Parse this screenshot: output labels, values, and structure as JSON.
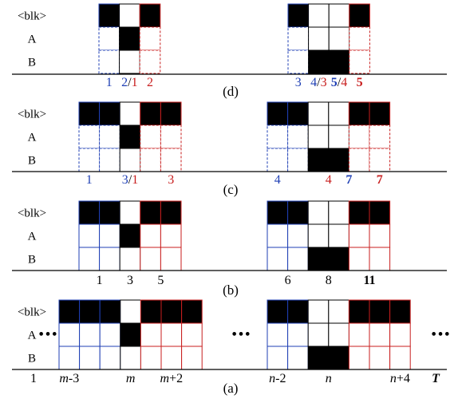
{
  "row_labels": [
    "<blk>",
    "A",
    "B"
  ],
  "ellipsis": "•••",
  "colors": {
    "blue": "#1f3fb4",
    "red": "#c81e1e",
    "black": "#000000"
  },
  "panels": [
    {
      "id": "d",
      "caption": "(d)",
      "dashed": true,
      "ellipsis": false,
      "groups": [
        {
          "cells": [
            {
              "color": "blue",
              "fill": [
                "blk"
              ]
            },
            {
              "color": "black",
              "fill": [
                "A"
              ]
            },
            {
              "color": "red",
              "fill": [
                "blk"
              ]
            }
          ],
          "labels": [
            {
              "parts": [
                {
                  "text": "1",
                  "color": "blue"
                }
              ],
              "cell": 0
            },
            {
              "parts": [
                {
                  "text": "2",
                  "color": "blue"
                },
                {
                  "text": "/",
                  "color": "black"
                },
                {
                  "text": "1",
                  "color": "red"
                }
              ],
              "cell": 1
            },
            {
              "parts": [
                {
                  "text": "2",
                  "color": "red"
                }
              ],
              "cell": 2
            }
          ]
        },
        {
          "cells": [
            {
              "color": "blue",
              "fill": [
                "blk"
              ]
            },
            {
              "color": "black",
              "fill": [
                "B"
              ]
            },
            {
              "color": "black",
              "fill": [
                "B"
              ]
            },
            {
              "color": "red",
              "fill": [
                "blk"
              ]
            }
          ],
          "labels": [
            {
              "parts": [
                {
                  "text": "3",
                  "color": "blue"
                }
              ],
              "cell": 0
            },
            {
              "parts": [
                {
                  "text": "4",
                  "color": "blue"
                },
                {
                  "text": "/",
                  "color": "black"
                },
                {
                  "text": "3",
                  "color": "red"
                }
              ],
              "cell": 1
            },
            {
              "parts": [
                {
                  "text": "5",
                  "color": "blue",
                  "bold": true
                },
                {
                  "text": "/",
                  "color": "black"
                },
                {
                  "text": "4",
                  "color": "red"
                }
              ],
              "cell": 2
            },
            {
              "parts": [
                {
                  "text": "5",
                  "color": "red",
                  "bold": true
                }
              ],
              "cell": 3
            }
          ]
        }
      ]
    },
    {
      "id": "c",
      "caption": "(c)",
      "dashed": true,
      "ellipsis": false,
      "groups": [
        {
          "cells": [
            {
              "color": "blue",
              "fill": [
                "blk"
              ]
            },
            {
              "color": "blue",
              "fill": [
                "blk"
              ]
            },
            {
              "color": "black",
              "fill": [
                "A"
              ]
            },
            {
              "color": "red",
              "fill": [
                "blk"
              ]
            },
            {
              "color": "red",
              "fill": [
                "blk"
              ]
            }
          ],
          "labels": [
            {
              "parts": [
                {
                  "text": "1",
                  "color": "blue"
                }
              ],
              "cell": 0
            },
            {
              "parts": [
                {
                  "text": "3",
                  "color": "blue"
                },
                {
                  "text": "/",
                  "color": "black"
                },
                {
                  "text": "1",
                  "color": "red"
                }
              ],
              "cell": 2
            },
            {
              "parts": [
                {
                  "text": "3",
                  "color": "red"
                }
              ],
              "cell": 4
            }
          ]
        },
        {
          "cells": [
            {
              "color": "blue",
              "fill": [
                "blk"
              ]
            },
            {
              "color": "blue",
              "fill": [
                "blk"
              ]
            },
            {
              "color": "black",
              "fill": [
                "B"
              ]
            },
            {
              "color": "black",
              "fill": [
                "B"
              ]
            },
            {
              "color": "red",
              "fill": [
                "blk"
              ]
            },
            {
              "color": "red",
              "fill": [
                "blk"
              ]
            }
          ],
          "labels": [
            {
              "parts": [
                {
                  "text": "4",
                  "color": "blue"
                }
              ],
              "cell": 0
            },
            {
              "parts": [
                {
                  "text": "4",
                  "color": "red"
                }
              ],
              "cell": 2.5
            },
            {
              "parts": [
                {
                  "text": "7",
                  "color": "blue",
                  "bold": true
                }
              ],
              "cell": 3.5
            },
            {
              "parts": [
                {
                  "text": "7",
                  "color": "red",
                  "bold": true
                }
              ],
              "cell": 5
            }
          ]
        }
      ]
    },
    {
      "id": "b",
      "caption": "(b)",
      "dashed": false,
      "ellipsis": false,
      "groups": [
        {
          "cells": [
            {
              "color": "blue",
              "fill": [
                "blk"
              ]
            },
            {
              "color": "blue",
              "fill": [
                "blk"
              ]
            },
            {
              "color": "black",
              "fill": [
                "A"
              ]
            },
            {
              "color": "red",
              "fill": [
                "blk"
              ]
            },
            {
              "color": "red",
              "fill": [
                "blk"
              ]
            }
          ],
          "labels": [
            {
              "parts": [
                {
                  "text": "1",
                  "color": "black"
                }
              ],
              "cell": 0.5
            },
            {
              "parts": [
                {
                  "text": "3",
                  "color": "black"
                }
              ],
              "cell": 2
            },
            {
              "parts": [
                {
                  "text": "5",
                  "color": "black"
                }
              ],
              "cell": 3.5
            }
          ]
        },
        {
          "cells": [
            {
              "color": "blue",
              "fill": [
                "blk"
              ]
            },
            {
              "color": "blue",
              "fill": [
                "blk"
              ]
            },
            {
              "color": "black",
              "fill": [
                "B"
              ]
            },
            {
              "color": "black",
              "fill": [
                "B"
              ]
            },
            {
              "color": "red",
              "fill": [
                "blk"
              ]
            },
            {
              "color": "red",
              "fill": [
                "blk"
              ]
            }
          ],
          "labels": [
            {
              "parts": [
                {
                  "text": "6",
                  "color": "black"
                }
              ],
              "cell": 0.5
            },
            {
              "parts": [
                {
                  "text": "8",
                  "color": "black"
                }
              ],
              "cell": 2.5
            },
            {
              "parts": [
                {
                  "text": "11",
                  "color": "black",
                  "bold": true
                }
              ],
              "cell": 4.5
            }
          ]
        }
      ]
    },
    {
      "id": "a",
      "caption": "(a)",
      "dashed": false,
      "ellipsis": true,
      "groups": [
        {
          "cells": [
            {
              "color": "blue",
              "fill": [
                "blk"
              ]
            },
            {
              "color": "blue",
              "fill": [
                "blk"
              ]
            },
            {
              "color": "blue",
              "fill": [
                "blk"
              ]
            },
            {
              "color": "black",
              "fill": [
                "A"
              ]
            },
            {
              "color": "red",
              "fill": [
                "blk"
              ]
            },
            {
              "color": "red",
              "fill": [
                "blk"
              ]
            },
            {
              "color": "red",
              "fill": [
                "blk"
              ]
            }
          ],
          "labels": [
            {
              "parts": [
                {
                  "text": "m",
                  "color": "black",
                  "italic": true
                },
                {
                  "text": "-3",
                  "color": "black"
                }
              ],
              "cell": 0
            },
            {
              "parts": [
                {
                  "text": "m",
                  "color": "black",
                  "italic": true
                }
              ],
              "cell": 3
            },
            {
              "parts": [
                {
                  "text": "m",
                  "color": "black",
                  "italic": true
                },
                {
                  "text": "+2",
                  "color": "black"
                }
              ],
              "cell": 5
            }
          ]
        },
        {
          "cells": [
            {
              "color": "blue",
              "fill": [
                "blk"
              ]
            },
            {
              "color": "blue",
              "fill": [
                "blk"
              ]
            },
            {
              "color": "black",
              "fill": [
                "B"
              ]
            },
            {
              "color": "black",
              "fill": [
                "B"
              ]
            },
            {
              "color": "red",
              "fill": [
                "blk"
              ]
            },
            {
              "color": "red",
              "fill": [
                "blk"
              ]
            },
            {
              "color": "red",
              "fill": [
                "blk"
              ]
            }
          ],
          "labels": [
            {
              "parts": [
                {
                  "text": "n",
                  "color": "black",
                  "italic": true
                },
                {
                  "text": "-2",
                  "color": "black"
                }
              ],
              "cell": 0
            },
            {
              "parts": [
                {
                  "text": "n",
                  "color": "black",
                  "italic": true
                }
              ],
              "cell": 2.5
            },
            {
              "parts": [
                {
                  "text": "n",
                  "color": "black",
                  "italic": true
                },
                {
                  "text": "+4",
                  "color": "black"
                }
              ],
              "cell": 6
            }
          ]
        }
      ],
      "extra_labels": [
        {
          "parts": [
            {
              "text": "1",
              "color": "black"
            }
          ],
          "where": "start"
        },
        {
          "parts": [
            {
              "text": "T",
              "color": "black",
              "italic": true,
              "bold": true
            }
          ],
          "where": "end"
        }
      ]
    }
  ]
}
